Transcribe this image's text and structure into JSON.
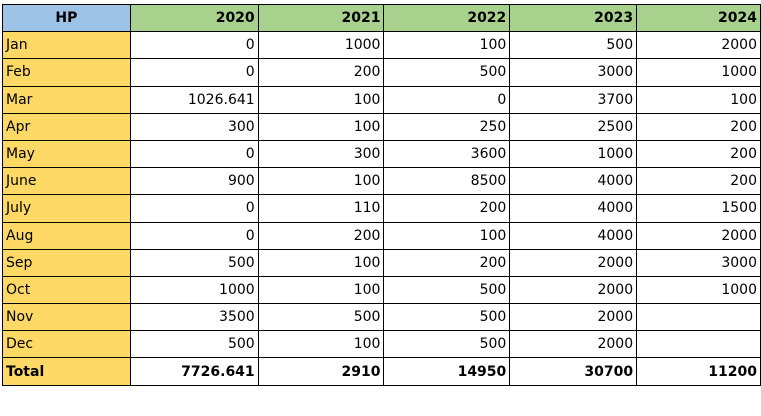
{
  "sheet": {
    "corner_label": "HP",
    "years": [
      "2020",
      "2021",
      "2022",
      "2023",
      "2024"
    ],
    "rows": [
      {
        "month": "Jan",
        "values": [
          "0",
          "1000",
          "100",
          "500",
          "2000"
        ]
      },
      {
        "month": "Feb",
        "values": [
          "0",
          "200",
          "500",
          "3000",
          "1000"
        ]
      },
      {
        "month": "Mar",
        "values": [
          "1026.641",
          "100",
          "0",
          "3700",
          "100"
        ]
      },
      {
        "month": "Apr",
        "values": [
          "300",
          "100",
          "250",
          "2500",
          "200"
        ]
      },
      {
        "month": "May",
        "values": [
          "0",
          "300",
          "3600",
          "1000",
          "200"
        ]
      },
      {
        "month": "June",
        "values": [
          "900",
          "100",
          "8500",
          "4000",
          "200"
        ]
      },
      {
        "month": "July",
        "values": [
          "0",
          "110",
          "200",
          "4000",
          "1500"
        ]
      },
      {
        "month": "Aug",
        "values": [
          "0",
          "200",
          "100",
          "4000",
          "2000"
        ]
      },
      {
        "month": "Sep",
        "values": [
          "500",
          "100",
          "200",
          "2000",
          "3000"
        ]
      },
      {
        "month": "Oct",
        "values": [
          "1000",
          "100",
          "500",
          "2000",
          "1000"
        ]
      },
      {
        "month": "Nov",
        "values": [
          "3500",
          "500",
          "500",
          "2000",
          ""
        ]
      },
      {
        "month": "Dec",
        "values": [
          "500",
          "100",
          "500",
          "2000",
          ""
        ]
      }
    ],
    "total": {
      "label": "Total",
      "values": [
        "7726.641",
        "2910",
        "14950",
        "30700",
        "11200"
      ]
    }
  }
}
